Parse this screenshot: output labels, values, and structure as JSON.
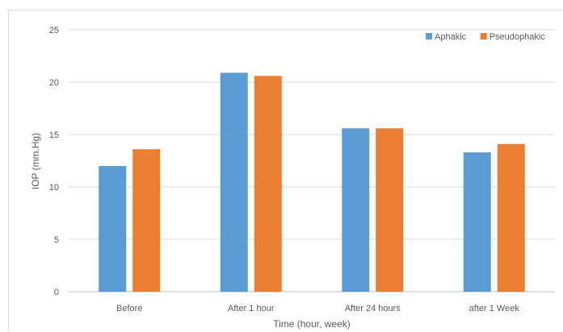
{
  "chart_data": {
    "type": "bar",
    "categories": [
      "Before",
      "After 1  hour",
      "After 24 hours",
      "after 1 Week"
    ],
    "series": [
      {
        "name": "Aphakic",
        "color": "#5b9bd5",
        "values": [
          12.0,
          20.9,
          15.6,
          13.3
        ]
      },
      {
        "name": "Pseudophakic",
        "color": "#ed7d31",
        "values": [
          13.6,
          20.6,
          15.6,
          14.1
        ]
      }
    ],
    "xlabel": "Time (hour, week)",
    "ylabel": "IOP (mm.Hg)",
    "ylim": [
      0,
      25
    ],
    "yticks": [
      "0",
      "5",
      "10",
      "15",
      "20",
      "25"
    ],
    "grid": true,
    "legend_position": "top-right"
  }
}
